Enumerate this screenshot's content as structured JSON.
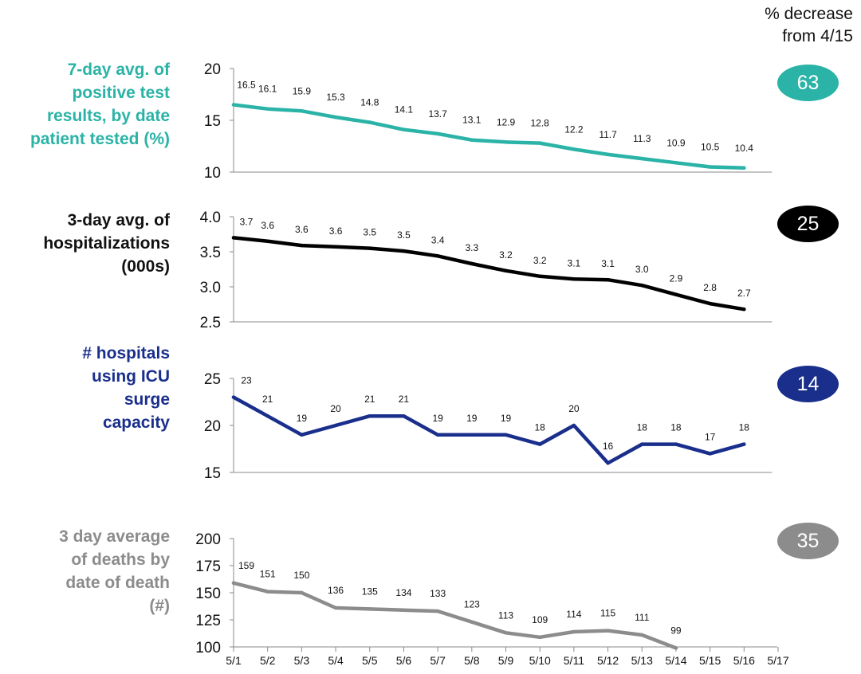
{
  "header": {
    "line1": "% decrease",
    "line2": "from 4/15"
  },
  "chart_data": {
    "type": "line",
    "x": [
      "5/1",
      "5/2",
      "5/3",
      "5/4",
      "5/5",
      "5/6",
      "5/7",
      "5/8",
      "5/9",
      "5/10",
      "5/11",
      "5/12",
      "5/13",
      "5/14",
      "5/15",
      "5/16",
      "5/17"
    ],
    "panels": [
      {
        "label_lines": [
          "7-day avg. of",
          "positive test",
          "results, by date",
          "patient tested (%)"
        ],
        "color": "#2ab3a6",
        "yticks": [
          "20",
          "15",
          "10"
        ],
        "ylim": [
          10,
          20
        ],
        "values": [
          16.5,
          16.1,
          15.9,
          15.3,
          14.8,
          14.1,
          13.7,
          13.1,
          12.9,
          12.8,
          12.2,
          11.7,
          11.3,
          10.9,
          10.5,
          10.4
        ],
        "data_labels": [
          "16.5",
          "16.1",
          "15.9",
          "15.3",
          "14.8",
          "14.1",
          "13.7",
          "13.1",
          "12.9",
          "12.8",
          "12.2",
          "11.7",
          "11.3",
          "10.9",
          "10.5",
          "10.4"
        ],
        "badge": "63"
      },
      {
        "label_lines": [
          "3-day avg. of",
          "hospitalizations",
          "(000s)"
        ],
        "color": "#000000",
        "yticks": [
          "4.0",
          "3.5",
          "3.0",
          "2.5"
        ],
        "ylim": [
          2.5,
          4.0
        ],
        "values": [
          3.7,
          3.65,
          3.59,
          3.57,
          3.55,
          3.51,
          3.44,
          3.33,
          3.23,
          3.15,
          3.11,
          3.1,
          3.02,
          2.89,
          2.76,
          2.68
        ],
        "data_labels": [
          "3.7",
          "3.6",
          "3.6",
          "3.6",
          "3.5",
          "3.5",
          "3.4",
          "3.3",
          "3.2",
          "3.2",
          "3.1",
          "3.1",
          "3.0",
          "2.9",
          "2.8",
          "2.7"
        ],
        "badge": "25"
      },
      {
        "label_lines": [
          "# hospitals",
          "using ICU",
          "surge",
          "capacity"
        ],
        "color": "#1a2f8c",
        "yticks": [
          "25",
          "20",
          "15"
        ],
        "ylim": [
          15,
          25
        ],
        "values": [
          23,
          21,
          19,
          20,
          21,
          21,
          19,
          19,
          19,
          18,
          20,
          16,
          18,
          18,
          17,
          18
        ],
        "data_labels": [
          "23",
          "21",
          "19",
          "20",
          "21",
          "21",
          "19",
          "19",
          "19",
          "18",
          "20",
          "16",
          "18",
          "18",
          "17",
          "18"
        ],
        "badge": "14"
      },
      {
        "label_lines": [
          "3 day average",
          "of deaths by",
          "date of death",
          "(#)"
        ],
        "color": "#8c8c8c",
        "yticks": [
          "200",
          "175",
          "150",
          "125",
          "100"
        ],
        "ylim": [
          100,
          200
        ],
        "values": [
          159,
          151,
          150,
          136,
          135,
          134,
          133,
          123,
          113,
          109,
          114,
          115,
          111,
          99
        ],
        "data_labels": [
          "159",
          "151",
          "150",
          "136",
          "135",
          "134",
          "133",
          "123",
          "113",
          "109",
          "114",
          "115",
          "111",
          "99"
        ],
        "badge": "35"
      }
    ]
  }
}
